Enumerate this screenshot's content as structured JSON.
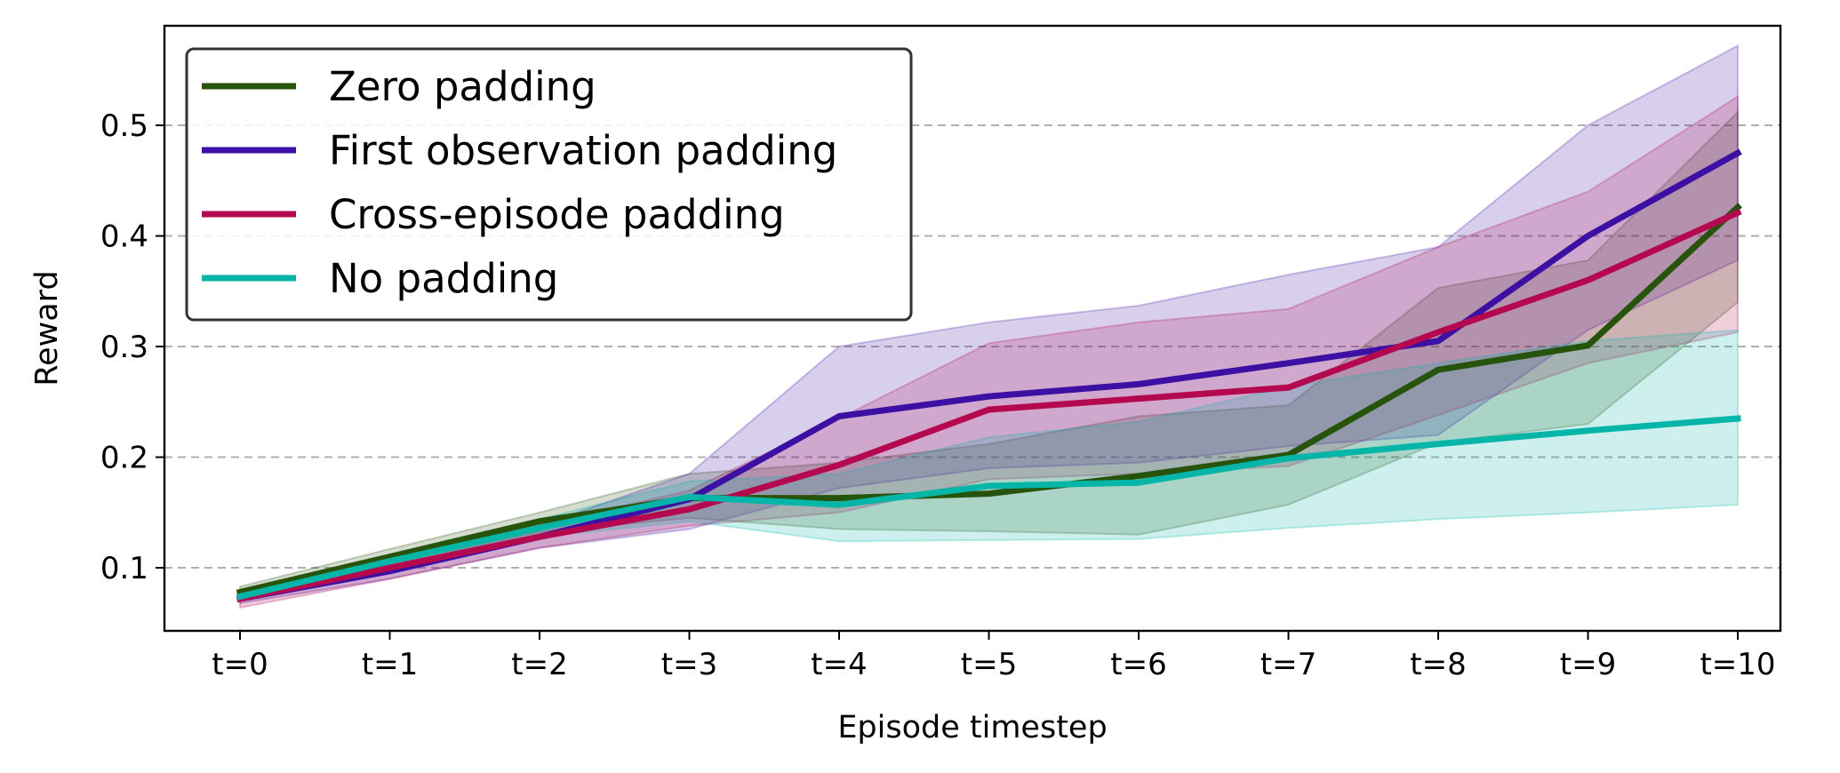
{
  "chart_data": {
    "type": "line",
    "title": "",
    "xlabel": "Episode timestep",
    "ylabel": "Reward",
    "categories": [
      "t=0",
      "t=1",
      "t=2",
      "t=3",
      "t=4",
      "t=5",
      "t=6",
      "t=7",
      "t=8",
      "t=9",
      "t=10"
    ],
    "yticks": [
      0.1,
      0.2,
      0.3,
      0.4,
      0.5
    ],
    "ytick_labels": [
      "0.1",
      "0.2",
      "0.3",
      "0.4",
      "0.5"
    ],
    "ylim": [
      0.043,
      0.59
    ],
    "grid": "horizontal dashed",
    "legend_position": "top-left",
    "series": [
      {
        "name": "Zero padding",
        "color": "#27540c",
        "values": [
          0.078,
          0.11,
          0.142,
          0.163,
          0.163,
          0.167,
          0.183,
          0.202,
          0.279,
          0.301,
          0.426
        ],
        "lower": [
          0.073,
          0.102,
          0.132,
          0.145,
          0.135,
          0.133,
          0.13,
          0.157,
          0.213,
          0.23,
          0.34
        ],
        "upper": [
          0.083,
          0.117,
          0.15,
          0.185,
          0.195,
          0.212,
          0.237,
          0.247,
          0.353,
          0.378,
          0.512
        ]
      },
      {
        "name": "First observation padding",
        "color": "#3b10a3",
        "values": [
          0.072,
          0.097,
          0.128,
          0.162,
          0.237,
          0.255,
          0.266,
          0.285,
          0.305,
          0.4,
          0.475
        ],
        "lower": [
          0.068,
          0.09,
          0.118,
          0.135,
          0.172,
          0.19,
          0.195,
          0.21,
          0.22,
          0.315,
          0.378
        ],
        "upper": [
          0.076,
          0.104,
          0.138,
          0.185,
          0.3,
          0.322,
          0.337,
          0.365,
          0.39,
          0.5,
          0.572
        ]
      },
      {
        "name": "Cross-episode padding",
        "color": "#b4094f",
        "values": [
          0.072,
          0.1,
          0.128,
          0.153,
          0.193,
          0.243,
          0.253,
          0.263,
          0.313,
          0.36,
          0.421
        ],
        "lower": [
          0.064,
          0.09,
          0.118,
          0.138,
          0.15,
          0.18,
          0.185,
          0.192,
          0.238,
          0.285,
          0.313
        ],
        "upper": [
          0.08,
          0.11,
          0.138,
          0.17,
          0.235,
          0.303,
          0.322,
          0.334,
          0.39,
          0.44,
          0.526
        ]
      },
      {
        "name": "No padding",
        "color": "#05b6a8",
        "values": [
          0.074,
          0.106,
          0.136,
          0.164,
          0.157,
          0.174,
          0.177,
          0.199,
          0.212,
          0.224,
          0.235
        ],
        "lower": [
          0.07,
          0.1,
          0.128,
          0.142,
          0.124,
          0.125,
          0.126,
          0.136,
          0.144,
          0.15,
          0.157
        ],
        "upper": [
          0.079,
          0.112,
          0.144,
          0.178,
          0.185,
          0.218,
          0.232,
          0.264,
          0.285,
          0.305,
          0.315
        ]
      }
    ]
  }
}
